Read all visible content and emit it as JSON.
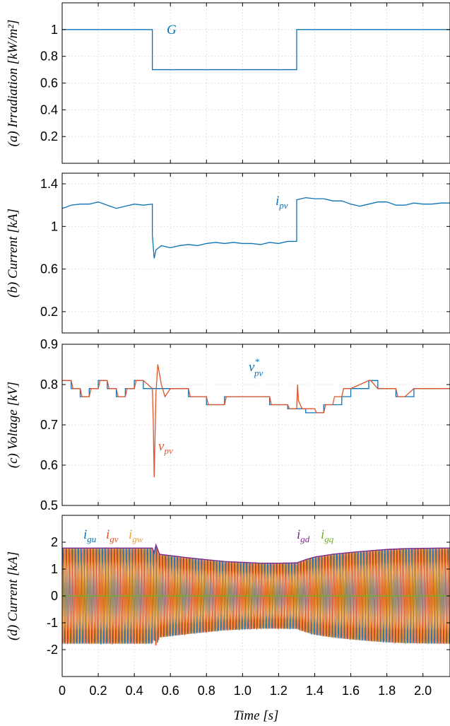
{
  "chart_data": [
    {
      "id": "a",
      "type": "line",
      "ylabel": "(a) Irradiation [kW/m²]",
      "ylim": [
        0,
        1.2
      ],
      "yticks": [
        0.2,
        0.4,
        0.6,
        0.8,
        1
      ],
      "ytick_labels": [
        "0.2",
        "0.4",
        "0.6",
        "0.8",
        "1"
      ],
      "grid": true,
      "annotations": [
        {
          "text": "G",
          "color": "#0b72b5"
        }
      ],
      "series": [
        {
          "name": "G",
          "color": "#0b72b5",
          "x": [
            0,
            0.5,
            0.5,
            1.3,
            1.3,
            2.15
          ],
          "y": [
            1,
            1,
            0.7,
            0.7,
            1,
            1
          ]
        }
      ]
    },
    {
      "id": "b",
      "type": "line",
      "ylabel": "(b) Current [kA]",
      "ylim": [
        0,
        1.5
      ],
      "yticks": [
        0.2,
        0.6,
        1,
        1.4
      ],
      "ytick_labels": [
        "0.2",
        "0.6",
        "1",
        "1.4"
      ],
      "grid": true,
      "annotations": [
        {
          "text": "i",
          "sub": "pv",
          "color": "#0b72b5"
        }
      ],
      "series": [
        {
          "name": "i_pv",
          "color": "#0b72b5",
          "x": [
            0,
            0.02,
            0.05,
            0.1,
            0.15,
            0.2,
            0.25,
            0.3,
            0.35,
            0.4,
            0.45,
            0.5,
            0.5,
            0.51,
            0.52,
            0.55,
            0.6,
            0.65,
            0.7,
            0.75,
            0.8,
            0.85,
            0.9,
            0.95,
            1.0,
            1.05,
            1.1,
            1.15,
            1.2,
            1.25,
            1.3,
            1.3,
            1.35,
            1.4,
            1.45,
            1.5,
            1.55,
            1.6,
            1.65,
            1.7,
            1.75,
            1.8,
            1.85,
            1.9,
            1.95,
            2.0,
            2.05,
            2.1,
            2.15
          ],
          "y": [
            1.17,
            1.18,
            1.2,
            1.21,
            1.21,
            1.23,
            1.2,
            1.17,
            1.19,
            1.21,
            1.2,
            1.21,
            0.92,
            0.7,
            0.78,
            0.82,
            0.8,
            0.82,
            0.83,
            0.82,
            0.84,
            0.85,
            0.84,
            0.85,
            0.84,
            0.84,
            0.83,
            0.85,
            0.84,
            0.86,
            0.86,
            1.25,
            1.27,
            1.26,
            1.26,
            1.24,
            1.24,
            1.21,
            1.19,
            1.21,
            1.23,
            1.23,
            1.2,
            1.2,
            1.22,
            1.21,
            1.21,
            1.22,
            1.22
          ]
        }
      ]
    },
    {
      "id": "c",
      "type": "line",
      "ylabel": "(c) Voltage [kV]",
      "ylim": [
        0.5,
        0.9
      ],
      "yticks": [
        0.5,
        0.6,
        0.7,
        0.8,
        0.9
      ],
      "ytick_labels": [
        "0.5",
        "0.6",
        "0.7",
        "0.8",
        "0.9"
      ],
      "grid": true,
      "annotations": [
        {
          "text": "v",
          "sub": "pv",
          "sup": "*",
          "color": "#0b72b5"
        },
        {
          "text": "v",
          "sub": "pv",
          "color": "#e0522a"
        }
      ],
      "series": [
        {
          "name": "v*_pv",
          "color": "#0b72b5",
          "step": true,
          "x": [
            0,
            0.05,
            0.1,
            0.15,
            0.2,
            0.25,
            0.3,
            0.35,
            0.4,
            0.45,
            0.5,
            0.55,
            0.6,
            0.65,
            0.7,
            0.75,
            0.8,
            0.85,
            0.9,
            0.95,
            1.0,
            1.05,
            1.1,
            1.15,
            1.2,
            1.25,
            1.3,
            1.35,
            1.4,
            1.45,
            1.5,
            1.55,
            1.6,
            1.65,
            1.7,
            1.75,
            1.8,
            1.85,
            1.9,
            1.95,
            2.0,
            2.05,
            2.1,
            2.15
          ],
          "y": [
            0.81,
            0.79,
            0.77,
            0.79,
            0.81,
            0.79,
            0.77,
            0.79,
            0.81,
            0.79,
            0.79,
            0.79,
            0.79,
            0.79,
            0.77,
            0.77,
            0.75,
            0.75,
            0.77,
            0.77,
            0.77,
            0.77,
            0.77,
            0.75,
            0.75,
            0.74,
            0.74,
            0.73,
            0.73,
            0.75,
            0.75,
            0.77,
            0.79,
            0.79,
            0.81,
            0.79,
            0.79,
            0.77,
            0.77,
            0.79,
            0.79,
            0.79,
            0.79,
            0.79
          ]
        },
        {
          "name": "v_pv",
          "color": "#e0522a",
          "x": [
            0,
            0.05,
            0.06,
            0.1,
            0.11,
            0.15,
            0.16,
            0.2,
            0.21,
            0.25,
            0.26,
            0.3,
            0.31,
            0.35,
            0.36,
            0.4,
            0.41,
            0.45,
            0.5,
            0.505,
            0.51,
            0.52,
            0.53,
            0.55,
            0.57,
            0.6,
            0.65,
            0.7,
            0.71,
            0.75,
            0.8,
            0.81,
            0.85,
            0.9,
            0.91,
            1.0,
            1.1,
            1.15,
            1.16,
            1.25,
            1.26,
            1.3,
            1.305,
            1.31,
            1.33,
            1.35,
            1.4,
            1.41,
            1.45,
            1.46,
            1.5,
            1.51,
            1.55,
            1.56,
            1.6,
            1.65,
            1.7,
            1.71,
            1.75,
            1.8,
            1.85,
            1.86,
            1.9,
            1.95,
            2.0,
            2.05,
            2.1,
            2.15
          ],
          "y": [
            0.81,
            0.81,
            0.79,
            0.79,
            0.77,
            0.77,
            0.79,
            0.79,
            0.81,
            0.81,
            0.79,
            0.79,
            0.77,
            0.77,
            0.79,
            0.79,
            0.81,
            0.81,
            0.79,
            0.71,
            0.57,
            0.78,
            0.85,
            0.8,
            0.77,
            0.79,
            0.79,
            0.79,
            0.77,
            0.77,
            0.77,
            0.75,
            0.75,
            0.75,
            0.77,
            0.77,
            0.77,
            0.77,
            0.75,
            0.75,
            0.74,
            0.74,
            0.8,
            0.76,
            0.74,
            0.74,
            0.74,
            0.73,
            0.73,
            0.75,
            0.75,
            0.77,
            0.77,
            0.79,
            0.79,
            0.8,
            0.81,
            0.81,
            0.79,
            0.79,
            0.79,
            0.77,
            0.77,
            0.79,
            0.79,
            0.79,
            0.79,
            0.79
          ]
        }
      ]
    },
    {
      "id": "d",
      "type": "line",
      "ylabel": "(d) Current [kA]",
      "xlabel": "Time [s]",
      "ylim": [
        -3,
        3
      ],
      "yticks": [
        -2,
        -1,
        0,
        1,
        2
      ],
      "ytick_labels": [
        "-2",
        "-1",
        "0",
        "1",
        "2"
      ],
      "xlim": [
        0,
        2.15
      ],
      "xticks": [
        0,
        0.2,
        0.4,
        0.6,
        0.8,
        1.0,
        1.2,
        1.4,
        1.6,
        1.8,
        2.0
      ],
      "xtick_labels": [
        "0",
        "0.2",
        "0.4",
        "0.6",
        "0.8",
        "1.0",
        "1.2",
        "1.4",
        "1.6",
        "1.8",
        "2.0"
      ],
      "grid": true,
      "frequency_hz": 60,
      "annotations": [
        {
          "text": "i",
          "sub": "gu",
          "color": "#0b72b5"
        },
        {
          "text": "i",
          "sub": "gv",
          "color": "#e0522a"
        },
        {
          "text": "i",
          "sub": "gw",
          "color": "#eea03a"
        },
        {
          "text": "i",
          "sub": "gd",
          "color": "#7d2e8e"
        },
        {
          "text": "i",
          "sub": "gq",
          "color": "#77ac30"
        }
      ],
      "series": [
        {
          "name": "i_gu",
          "color": "#0b72b5"
        },
        {
          "name": "i_gv",
          "color": "#e0522a"
        },
        {
          "name": "i_gw",
          "color": "#eea03a"
        },
        {
          "name": "i_gd",
          "color": "#7d2e8e",
          "x": [
            0,
            0.5,
            0.51,
            0.52,
            0.54,
            0.6,
            0.7,
            0.8,
            0.9,
            1.0,
            1.1,
            1.2,
            1.3,
            1.35,
            1.4,
            1.5,
            1.6,
            1.7,
            1.8,
            1.9,
            2.0,
            2.1,
            2.15
          ],
          "y": [
            1.78,
            1.78,
            1.6,
            1.9,
            1.55,
            1.5,
            1.42,
            1.35,
            1.28,
            1.25,
            1.22,
            1.22,
            1.23,
            1.35,
            1.45,
            1.55,
            1.62,
            1.68,
            1.73,
            1.76,
            1.77,
            1.78,
            1.78
          ]
        },
        {
          "name": "i_gq",
          "color": "#77ac30",
          "x": [
            0,
            2.15
          ],
          "y": [
            0,
            0
          ]
        }
      ]
    }
  ]
}
